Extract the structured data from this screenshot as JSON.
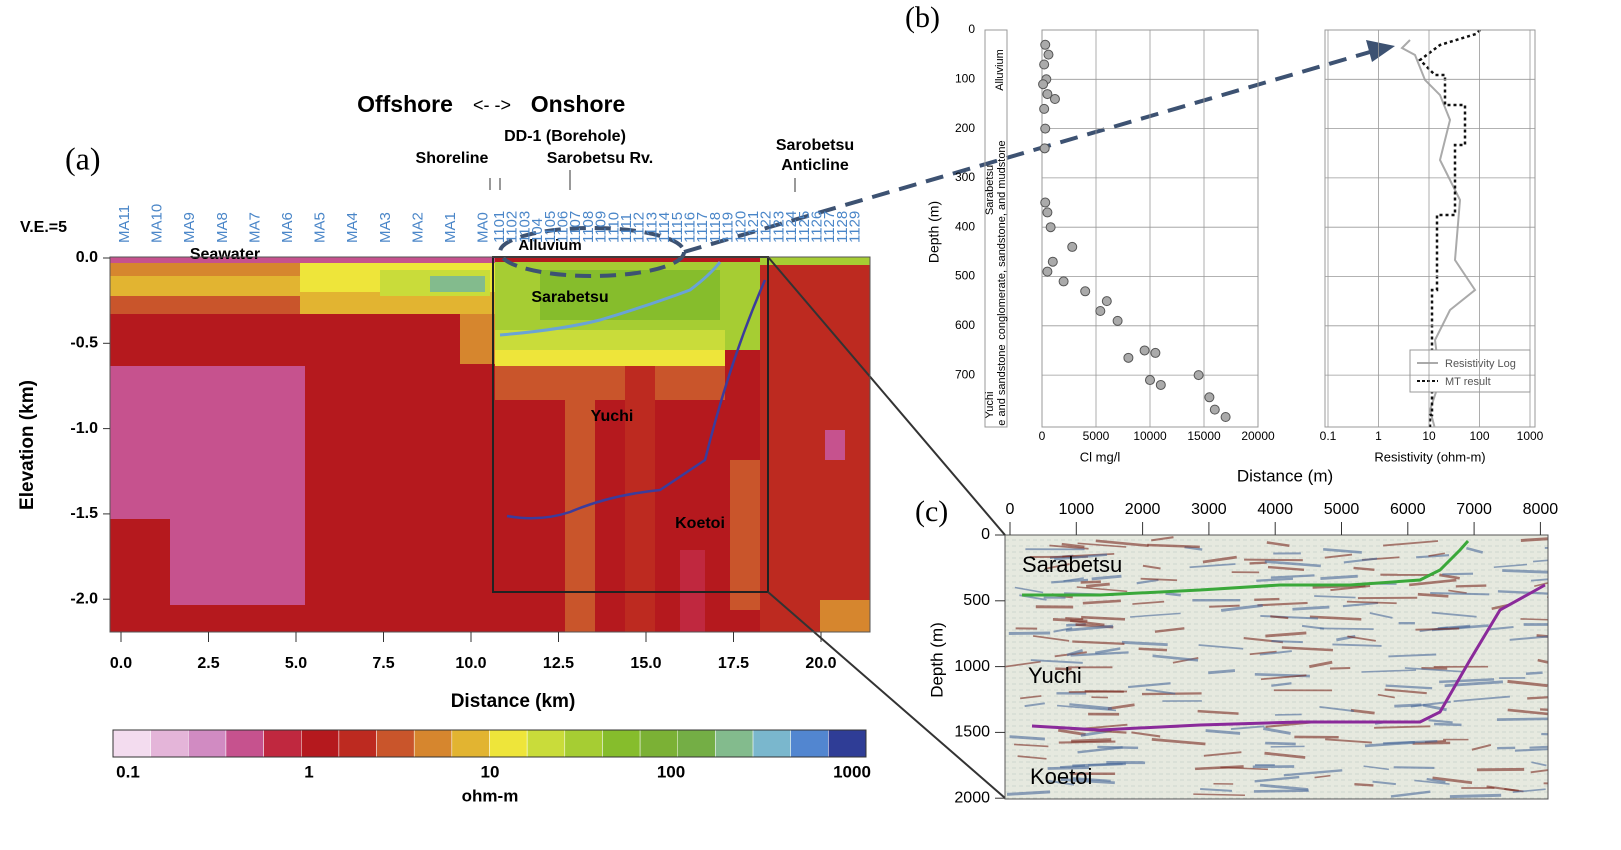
{
  "panel_a": {
    "label": "(a)",
    "title_left": "Offshore",
    "title_right": "Onshore",
    "borehole": "DD-1 (Borehole)",
    "shoreline": "Shoreline",
    "river": "Sarobetsu Rv.",
    "anticline": [
      "Sarobetsu",
      "Anticline"
    ],
    "vertical_exaggeration": "V.E.=5",
    "stations": [
      "MA11",
      "MA10",
      "MA9",
      "MA8",
      "MA7",
      "MA6",
      "MA5",
      "MA4",
      "MA3",
      "MA2",
      "MA1",
      "MA0",
      "1101",
      "1102",
      "1103",
      "104",
      "1105",
      "1106",
      "1107",
      "1108",
      "1109",
      "1110",
      "1111",
      "1112",
      "1113",
      "1114",
      "1115",
      "1116",
      "1117",
      "1118",
      "1119",
      "1120",
      "1121",
      "1122",
      "1123",
      "1124",
      "1125",
      "1126",
      "1127",
      "1128",
      "1129"
    ],
    "regions": {
      "seawater": "Seawater",
      "alluvium": "Alluvium",
      "sarabetsu": "Sarabetsu",
      "yuchi": "Yuchi",
      "koetoi": "Koetoi"
    },
    "y_label": "Elevation (km)",
    "y_ticks": [
      "0.0",
      "-0.5",
      "-1.0",
      "-1.5",
      "-2.0"
    ],
    "x_label": "Distance (km)",
    "x_ticks": [
      "0.0",
      "2.5",
      "5.0",
      "7.5",
      "10.0",
      "12.5",
      "15.0",
      "17.5",
      "20.0"
    ],
    "colorbar_ticks": [
      "0.1",
      "1",
      "10",
      "100",
      "1000"
    ],
    "colorbar_unit": "ohm-m"
  },
  "panel_b": {
    "label": "(b)",
    "depth_label": "Depth (m)",
    "depth_ticks": [
      "0",
      "100",
      "200",
      "300",
      "400",
      "500",
      "600",
      "700"
    ],
    "formations": [
      "Alluvium",
      "Sarabetsu",
      "conglomerate, sandstone, and mudstone",
      "Yuchi",
      "e and sandstone"
    ],
    "cl_label": "Cl  mg/l",
    "cl_ticks": [
      "0",
      "5000",
      "10000",
      "15000",
      "20000"
    ],
    "resistivity_label": "Resistivity (ohm-m)",
    "resistivity_ticks": [
      "0.1",
      "1",
      "10",
      "100",
      "1000"
    ],
    "legend": [
      "Resistivity Log",
      "MT result"
    ],
    "x_label": "Distance (m)",
    "cl_points": [
      [
        300,
        30
      ],
      [
        600,
        50
      ],
      [
        200,
        70
      ],
      [
        400,
        100
      ],
      [
        100,
        110
      ],
      [
        500,
        130
      ],
      [
        1200,
        140
      ],
      [
        200,
        160
      ],
      [
        300,
        200
      ],
      [
        250,
        240
      ],
      [
        300,
        350
      ],
      [
        500,
        370
      ],
      [
        800,
        400
      ],
      [
        2800,
        440
      ],
      [
        1000,
        470
      ],
      [
        500,
        490
      ],
      [
        2000,
        510
      ],
      [
        4000,
        530
      ],
      [
        6000,
        550
      ],
      [
        5400,
        570
      ],
      [
        7000,
        590
      ],
      [
        9500,
        650
      ],
      [
        10500,
        655
      ],
      [
        8000,
        665
      ],
      [
        10000,
        710
      ],
      [
        11000,
        720
      ],
      [
        14500,
        700
      ],
      [
        15500,
        745
      ],
      [
        16000,
        770
      ],
      [
        17000,
        785
      ]
    ]
  },
  "panel_c": {
    "label": "(c)",
    "x_ticks": [
      "0",
      "1000",
      "2000",
      "3000",
      "4000",
      "5000",
      "6000",
      "7000",
      "8000"
    ],
    "y_label": "Depth (m)",
    "y_ticks": [
      "0",
      "500",
      "1000",
      "1500",
      "2000"
    ],
    "units": [
      "Sarabetsu",
      "Yuchi",
      "Koetoi"
    ]
  }
}
